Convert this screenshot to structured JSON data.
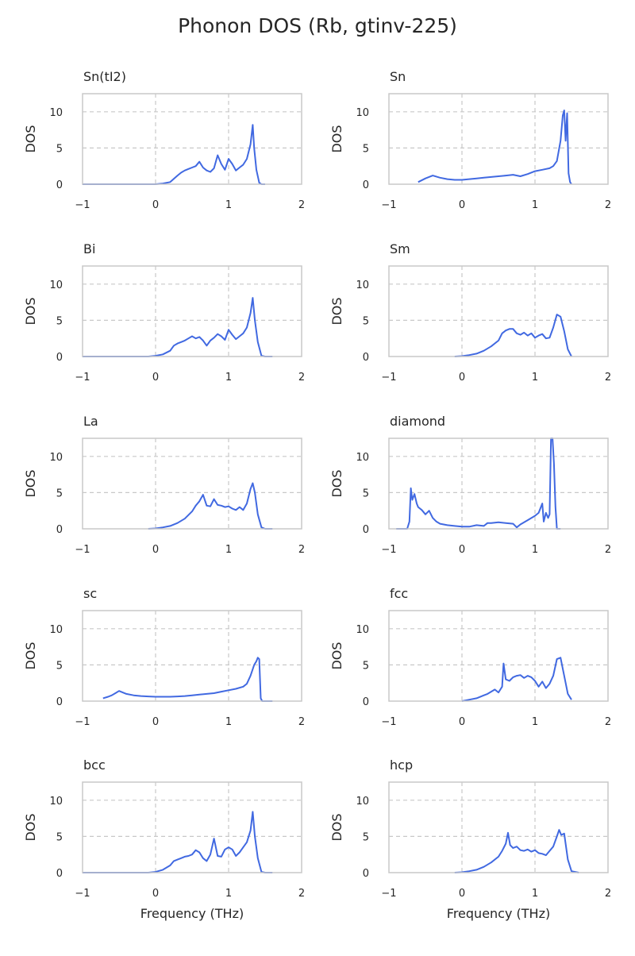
{
  "figure": {
    "title": "Phonon DOS (Rb, gtinv-225)",
    "line_color": "#4169e1",
    "grid_color": "#c8c8c8",
    "frame_color": "#c8c8c8"
  },
  "chart_data": [
    {
      "type": "line",
      "title": "Sn(tI2)",
      "xlabel": "",
      "ylabel": "DOS",
      "xlim": [
        -1,
        2
      ],
      "ylim": [
        0,
        12.5
      ],
      "xticks": [
        -1,
        0,
        1,
        2
      ],
      "yticks": [
        0,
        5,
        10
      ],
      "grid": true,
      "series": [
        {
          "x": [
            -1,
            0,
            0.1,
            0.2,
            0.3,
            0.35,
            0.4,
            0.45,
            0.5,
            0.55,
            0.6,
            0.65,
            0.7,
            0.75,
            0.8,
            0.85,
            0.9,
            0.95,
            1.0,
            1.05,
            1.1,
            1.15,
            1.2,
            1.25,
            1.3,
            1.33,
            1.35,
            1.38,
            1.42,
            1.45,
            1.5
          ],
          "y": [
            0,
            0,
            0.1,
            0.3,
            1.2,
            1.6,
            1.9,
            2.1,
            2.3,
            2.5,
            3.1,
            2.3,
            1.9,
            1.7,
            2.2,
            4.0,
            2.8,
            2.0,
            3.5,
            2.8,
            1.9,
            2.3,
            2.7,
            3.5,
            5.5,
            8.2,
            5.0,
            2.0,
            0.2,
            0,
            0
          ]
        }
      ]
    },
    {
      "type": "line",
      "title": "Sn",
      "xlabel": "",
      "ylabel": "DOS",
      "xlim": [
        -1,
        2
      ],
      "ylim": [
        0,
        12.5
      ],
      "xticks": [
        -1,
        0,
        1,
        2
      ],
      "yticks": [
        0,
        5,
        10
      ],
      "grid": true,
      "series": [
        {
          "x": [
            -0.6,
            -0.5,
            -0.4,
            -0.3,
            -0.2,
            -0.1,
            0,
            0.1,
            0.2,
            0.3,
            0.4,
            0.5,
            0.6,
            0.7,
            0.8,
            0.9,
            1.0,
            1.1,
            1.2,
            1.25,
            1.3,
            1.35,
            1.38,
            1.4,
            1.42,
            1.44,
            1.46,
            1.48,
            1.5
          ],
          "y": [
            0.3,
            0.8,
            1.2,
            0.9,
            0.7,
            0.6,
            0.6,
            0.7,
            0.8,
            0.9,
            1.0,
            1.1,
            1.2,
            1.3,
            1.1,
            1.4,
            1.8,
            2.0,
            2.2,
            2.5,
            3.2,
            6.0,
            9.5,
            10.2,
            6.0,
            9.8,
            1.5,
            0.3,
            0
          ]
        }
      ]
    },
    {
      "type": "line",
      "title": "Bi",
      "xlabel": "",
      "ylabel": "DOS",
      "xlim": [
        -1,
        2
      ],
      "ylim": [
        0,
        12.5
      ],
      "xticks": [
        -1,
        0,
        1,
        2
      ],
      "yticks": [
        0,
        5,
        10
      ],
      "grid": true,
      "series": [
        {
          "x": [
            -1,
            -0.1,
            0,
            0.1,
            0.2,
            0.25,
            0.3,
            0.35,
            0.4,
            0.45,
            0.5,
            0.55,
            0.6,
            0.65,
            0.7,
            0.75,
            0.8,
            0.85,
            0.9,
            0.95,
            1.0,
            1.05,
            1.1,
            1.15,
            1.2,
            1.25,
            1.3,
            1.33,
            1.36,
            1.4,
            1.45,
            1.5,
            1.6
          ],
          "y": [
            0,
            0,
            0.1,
            0.3,
            0.8,
            1.5,
            1.8,
            2.0,
            2.2,
            2.5,
            2.8,
            2.5,
            2.7,
            2.2,
            1.5,
            2.2,
            2.6,
            3.1,
            2.8,
            2.3,
            3.7,
            3.0,
            2.4,
            2.8,
            3.2,
            4.0,
            6.0,
            8.1,
            5.0,
            2.0,
            0.1,
            0,
            0
          ]
        }
      ]
    },
    {
      "type": "line",
      "title": "Sm",
      "xlabel": "",
      "ylabel": "DOS",
      "xlim": [
        -1,
        2
      ],
      "ylim": [
        0,
        12.5
      ],
      "xticks": [
        -1,
        0,
        1,
        2
      ],
      "yticks": [
        0,
        5,
        10
      ],
      "grid": true,
      "series": [
        {
          "x": [
            -0.1,
            0,
            0.1,
            0.2,
            0.3,
            0.4,
            0.5,
            0.55,
            0.6,
            0.65,
            0.7,
            0.75,
            0.8,
            0.85,
            0.9,
            0.95,
            1.0,
            1.05,
            1.1,
            1.15,
            1.2,
            1.25,
            1.3,
            1.35,
            1.4,
            1.45,
            1.5
          ],
          "y": [
            0,
            0.05,
            0.2,
            0.4,
            0.8,
            1.4,
            2.2,
            3.2,
            3.6,
            3.8,
            3.8,
            3.2,
            3.0,
            3.3,
            2.9,
            3.2,
            2.6,
            2.9,
            3.1,
            2.5,
            2.6,
            4.0,
            5.8,
            5.5,
            3.5,
            1.0,
            0
          ]
        }
      ]
    },
    {
      "type": "line",
      "title": "La",
      "xlabel": "",
      "ylabel": "DOS",
      "xlim": [
        -1,
        2
      ],
      "ylim": [
        0,
        12.5
      ],
      "xticks": [
        -1,
        0,
        1,
        2
      ],
      "yticks": [
        0,
        5,
        10
      ],
      "grid": true,
      "series": [
        {
          "x": [
            -0.1,
            0,
            0.1,
            0.2,
            0.3,
            0.4,
            0.5,
            0.55,
            0.6,
            0.65,
            0.7,
            0.75,
            0.8,
            0.85,
            0.9,
            0.95,
            1.0,
            1.05,
            1.1,
            1.15,
            1.2,
            1.25,
            1.3,
            1.33,
            1.36,
            1.4,
            1.45,
            1.5,
            1.6
          ],
          "y": [
            0,
            0.05,
            0.2,
            0.4,
            0.8,
            1.4,
            2.4,
            3.2,
            3.8,
            4.7,
            3.2,
            3.1,
            4.1,
            3.3,
            3.2,
            3.0,
            3.1,
            2.8,
            2.6,
            3.0,
            2.6,
            3.5,
            5.5,
            6.3,
            5.0,
            2.0,
            0.2,
            0,
            0
          ]
        }
      ]
    },
    {
      "type": "line",
      "title": "diamond",
      "xlabel": "",
      "ylabel": "DOS",
      "xlim": [
        -1,
        2
      ],
      "ylim": [
        0,
        12.5
      ],
      "xticks": [
        -1,
        0,
        1,
        2
      ],
      "yticks": [
        0,
        5,
        10
      ],
      "grid": true,
      "series": [
        {
          "x": [
            -0.9,
            -0.75,
            -0.72,
            -0.7,
            -0.68,
            -0.65,
            -0.62,
            -0.6,
            -0.55,
            -0.5,
            -0.45,
            -0.4,
            -0.35,
            -0.3,
            -0.2,
            -0.1,
            0,
            0.1,
            0.2,
            0.3,
            0.35,
            0.4,
            0.5,
            0.6,
            0.7,
            0.75,
            0.8,
            0.9,
            1.0,
            1.05,
            1.1,
            1.12,
            1.15,
            1.18,
            1.2,
            1.22,
            1.24,
            1.26,
            1.28,
            1.3,
            1.35
          ],
          "y": [
            0,
            0,
            1.0,
            5.6,
            4.0,
            4.8,
            3.5,
            3.0,
            2.6,
            2.0,
            2.5,
            1.5,
            1.0,
            0.7,
            0.5,
            0.4,
            0.3,
            0.3,
            0.5,
            0.4,
            0.8,
            0.8,
            0.9,
            0.8,
            0.7,
            0.2,
            0.6,
            1.2,
            1.8,
            2.2,
            3.5,
            1.0,
            2.2,
            1.5,
            2.0,
            12.5,
            12.5,
            9.0,
            3.0,
            0,
            0
          ]
        }
      ]
    },
    {
      "type": "line",
      "title": "sc",
      "xlabel": "",
      "ylabel": "DOS",
      "xlim": [
        -1,
        2
      ],
      "ylim": [
        0,
        12.5
      ],
      "xticks": [
        -1,
        0,
        1,
        2
      ],
      "yticks": [
        0,
        5,
        10
      ],
      "grid": true,
      "series": [
        {
          "x": [
            -0.72,
            -0.65,
            -0.6,
            -0.55,
            -0.5,
            -0.45,
            -0.4,
            -0.3,
            -0.2,
            -0.1,
            0,
            0.1,
            0.2,
            0.3,
            0.4,
            0.5,
            0.6,
            0.7,
            0.8,
            0.9,
            1.0,
            1.1,
            1.2,
            1.25,
            1.3,
            1.35,
            1.38,
            1.4,
            1.42,
            1.44,
            1.46,
            1.5,
            1.6
          ],
          "y": [
            0.4,
            0.6,
            0.8,
            1.1,
            1.4,
            1.2,
            1.0,
            0.8,
            0.7,
            0.65,
            0.6,
            0.6,
            0.6,
            0.65,
            0.7,
            0.8,
            0.9,
            1.0,
            1.1,
            1.3,
            1.5,
            1.7,
            2.0,
            2.4,
            3.5,
            5.0,
            5.5,
            6.0,
            5.8,
            0.4,
            0,
            0,
            0
          ]
        }
      ]
    },
    {
      "type": "line",
      "title": "fcc",
      "xlabel": "",
      "ylabel": "DOS",
      "xlim": [
        -1,
        2
      ],
      "ylim": [
        0,
        12.5
      ],
      "xticks": [
        -1,
        0,
        1,
        2
      ],
      "yticks": [
        0,
        5,
        10
      ],
      "grid": true,
      "series": [
        {
          "x": [
            0,
            0.1,
            0.2,
            0.3,
            0.35,
            0.4,
            0.45,
            0.5,
            0.55,
            0.57,
            0.6,
            0.65,
            0.7,
            0.75,
            0.8,
            0.85,
            0.9,
            0.95,
            1.0,
            1.05,
            1.1,
            1.15,
            1.2,
            1.25,
            1.3,
            1.35,
            1.4,
            1.45,
            1.5
          ],
          "y": [
            0,
            0.2,
            0.4,
            0.8,
            1.0,
            1.3,
            1.6,
            1.2,
            2.0,
            5.2,
            3.0,
            2.8,
            3.3,
            3.5,
            3.6,
            3.2,
            3.5,
            3.3,
            2.8,
            2.0,
            2.7,
            1.8,
            2.4,
            3.5,
            5.8,
            6.0,
            3.5,
            1.0,
            0.2
          ]
        }
      ]
    },
    {
      "type": "line",
      "title": "bcc",
      "xlabel": "Frequency (THz)",
      "ylabel": "DOS",
      "xlim": [
        -1,
        2
      ],
      "ylim": [
        0,
        12.5
      ],
      "xticks": [
        -1,
        0,
        1,
        2
      ],
      "yticks": [
        0,
        5,
        10
      ],
      "grid": true,
      "series": [
        {
          "x": [
            -1,
            -0.1,
            0,
            0.1,
            0.2,
            0.25,
            0.3,
            0.35,
            0.4,
            0.45,
            0.5,
            0.55,
            0.6,
            0.65,
            0.7,
            0.75,
            0.8,
            0.85,
            0.9,
            0.95,
            1.0,
            1.05,
            1.1,
            1.15,
            1.2,
            1.25,
            1.3,
            1.33,
            1.36,
            1.4,
            1.45,
            1.5,
            1.6
          ],
          "y": [
            0,
            0,
            0.1,
            0.4,
            1.0,
            1.6,
            1.8,
            2.0,
            2.2,
            2.3,
            2.5,
            3.1,
            2.8,
            2.0,
            1.6,
            2.5,
            4.7,
            2.3,
            2.2,
            3.2,
            3.5,
            3.2,
            2.3,
            2.8,
            3.5,
            4.2,
            5.8,
            8.4,
            5.0,
            2.0,
            0.1,
            0,
            0
          ]
        }
      ]
    },
    {
      "type": "line",
      "title": "hcp",
      "xlabel": "Frequency (THz)",
      "ylabel": "DOS",
      "xlim": [
        -1,
        2
      ],
      "ylim": [
        0,
        12.5
      ],
      "xticks": [
        -1,
        0,
        1,
        2
      ],
      "yticks": [
        0,
        5,
        10
      ],
      "grid": true,
      "series": [
        {
          "x": [
            -0.1,
            0,
            0.1,
            0.2,
            0.3,
            0.4,
            0.5,
            0.55,
            0.6,
            0.63,
            0.66,
            0.7,
            0.75,
            0.8,
            0.85,
            0.9,
            0.95,
            1.0,
            1.05,
            1.1,
            1.15,
            1.2,
            1.25,
            1.3,
            1.33,
            1.36,
            1.4,
            1.45,
            1.5,
            1.6
          ],
          "y": [
            0,
            0.05,
            0.2,
            0.4,
            0.8,
            1.4,
            2.2,
            3.0,
            4.0,
            5.5,
            3.8,
            3.4,
            3.6,
            3.1,
            3.0,
            3.2,
            2.9,
            3.1,
            2.7,
            2.6,
            2.4,
            3.0,
            3.6,
            5.0,
            5.9,
            5.2,
            5.4,
            1.8,
            0.2,
            0
          ]
        }
      ]
    }
  ]
}
